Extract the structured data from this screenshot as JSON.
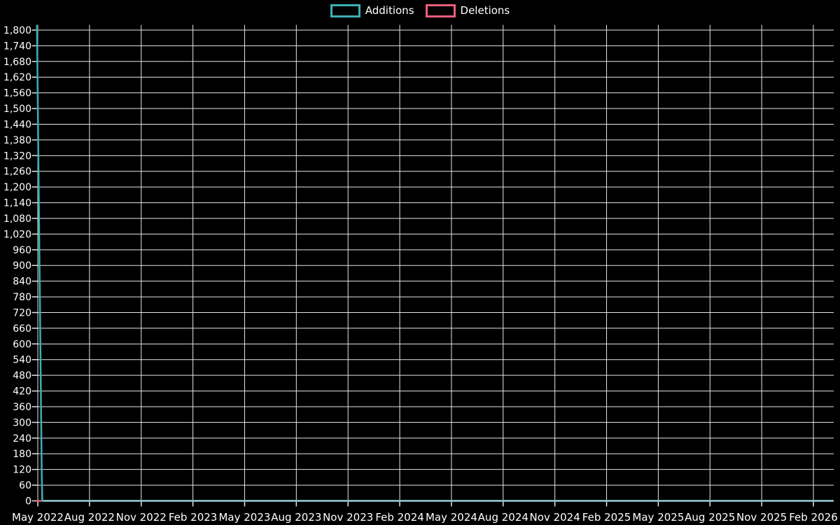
{
  "chart_data": {
    "type": "line",
    "title": "",
    "background": "#000000",
    "grid": true,
    "grid_color": "#e6e6e6",
    "text_color": "#ffffff",
    "legend_position": "top-center",
    "legend": [
      {
        "label": "Additions",
        "color": "#3dafb5"
      },
      {
        "label": "Deletions",
        "color": "#ea5d7b"
      }
    ],
    "x_axis": {
      "start_tick": "May 2022",
      "end_tick": "Feb 2026",
      "tick_interval_months": 3
    },
    "x_ticks": [
      "May 2022",
      "Aug 2022",
      "Nov 2022",
      "Feb 2023",
      "May 2023",
      "Aug 2023",
      "Nov 2023",
      "Feb 2024",
      "May 2024",
      "Aug 2024",
      "Nov 2024",
      "Feb 2025",
      "May 2025",
      "Aug 2025",
      "Nov 2025",
      "Feb 2026"
    ],
    "y_axis": {
      "min": 0,
      "max_tick": 1800,
      "plot_max": 1820,
      "tick_step": 60
    },
    "y_tick_labels": [
      "0",
      "60",
      "120",
      "180",
      "240",
      "300",
      "360",
      "420",
      "480",
      "540",
      "600",
      "660",
      "720",
      "780",
      "840",
      "900",
      "960",
      "1,020",
      "1,080",
      "1,140",
      "1,200",
      "1,260",
      "1,320",
      "1,380",
      "1,440",
      "1,500",
      "1,560",
      "1,620",
      "1,680",
      "1,740",
      "1,800"
    ],
    "series": [
      {
        "name": "Deletions",
        "color": "#ea5d7b",
        "points": [
          [
            "2022-04-29",
            0
          ],
          [
            "2026-03-06",
            0
          ]
        ]
      },
      {
        "name": "Additions",
        "color": "#3dafb5",
        "points": [
          [
            "2022-04-30",
            1820
          ],
          [
            "2022-05-08",
            90
          ],
          [
            "2022-05-09",
            0
          ],
          [
            "2026-03-06",
            0
          ]
        ]
      }
    ]
  }
}
